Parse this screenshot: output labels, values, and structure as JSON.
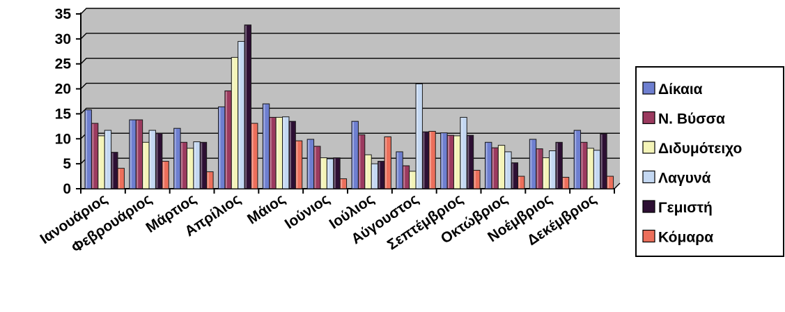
{
  "chart_data": {
    "type": "bar",
    "title": "",
    "xlabel": "",
    "ylabel": "",
    "ylim": [
      0,
      35
    ],
    "yticks": [
      0,
      5,
      10,
      15,
      20,
      25,
      30,
      35
    ],
    "grid": true,
    "legend_position": "right",
    "plot_background": "#c0c0c0",
    "categories": [
      "Ιανουάριος",
      "Φεβρουάριος",
      "Μάρτιος",
      "Απρίλιος",
      "Μάιος",
      "Ιούνιος",
      "Ιούλιος",
      "Αύγουστος",
      "Σεπτέμβριος",
      "Οκτώβριος",
      "Νοέμβριος",
      "Δεκέμβριος"
    ],
    "series": [
      {
        "name": "Δίκαια",
        "color": "#6e7fd0",
        "values": [
          15.8,
          13.8,
          12.1,
          16.4,
          17.0,
          9.9,
          13.5,
          7.4,
          11.2,
          9.3,
          9.9,
          11.7
        ]
      },
      {
        "name": "Ν. Βύσσα",
        "color": "#9b3a5f",
        "values": [
          13.1,
          13.8,
          9.3,
          19.6,
          14.3,
          8.5,
          10.8,
          4.6,
          10.7,
          8.2,
          8.0,
          9.3
        ]
      },
      {
        "name": "Διδυμότειχο",
        "color": "#f4f4b8",
        "values": [
          10.6,
          9.3,
          8.1,
          26.3,
          14.3,
          6.2,
          6.8,
          3.5,
          10.6,
          8.7,
          6.2,
          8.1
        ]
      },
      {
        "name": "Λαγυνά",
        "color": "#c4d8f2",
        "values": [
          11.7,
          11.7,
          9.4,
          29.5,
          14.4,
          6.0,
          5.0,
          21.0,
          14.3,
          7.4,
          7.6,
          7.7
        ]
      },
      {
        "name": "Γεμιστή",
        "color": "#2d0f33",
        "values": [
          7.3,
          11.1,
          9.3,
          32.8,
          13.5,
          6.2,
          5.5,
          11.4,
          10.7,
          5.2,
          9.3,
          11.0
        ]
      },
      {
        "name": "Κόμαρα",
        "color": "#ec6f5b",
        "values": [
          4.1,
          5.5,
          3.4,
          13.1,
          9.6,
          2.0,
          10.4,
          11.5,
          3.7,
          2.5,
          2.3,
          2.5
        ]
      }
    ]
  }
}
